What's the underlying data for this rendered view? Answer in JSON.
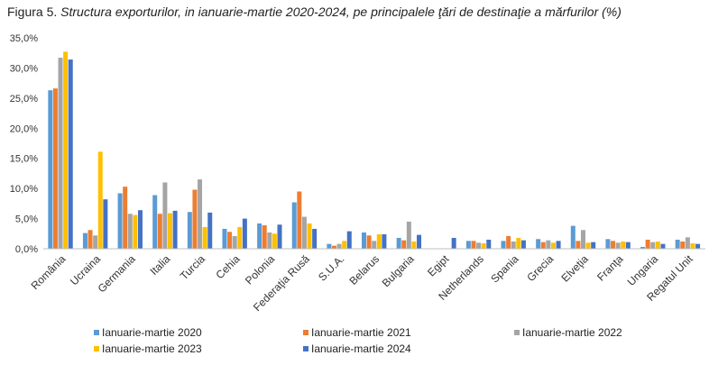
{
  "figure": {
    "prefix": "Figura 5.",
    "title": "Structura exporturilor, in ianuarie-martie 2020-2024, pe principalele ţări de destinaţie a mărfurilor (%)"
  },
  "chart_data": {
    "type": "bar",
    "title": "Figura 5. Structura exporturilor, in ianuarie-martie 2020-2024, pe principalele ţări de destinaţie a mărfurilor (%)",
    "xlabel": "",
    "ylabel": "",
    "ylim": [
      0,
      35
    ],
    "yticks": [
      "0,0%",
      "5,0%",
      "10,0%",
      "15,0%",
      "20,0%",
      "25,0%",
      "30,0%",
      "35,0%"
    ],
    "grid": false,
    "legend_position": "bottom",
    "categories": [
      "România",
      "Ucraina",
      "Germania",
      "Italia",
      "Turcia",
      "Cehia",
      "Polonia",
      "Federaţia Rusă",
      "S.U.A.",
      "Belarus",
      "Bulgaria",
      "Egipt",
      "Netherlands",
      "Spania",
      "Grecia",
      "Elveţia",
      "Franţa",
      "Ungaria",
      "Regatul Unit"
    ],
    "series": [
      {
        "name": "Ianuarie-martie 2020",
        "color": "#5B9BD5",
        "values": [
          26.3,
          2.6,
          9.2,
          8.9,
          6.1,
          3.3,
          4.2,
          7.7,
          0.8,
          2.7,
          1.8,
          0,
          1.3,
          1.3,
          1.6,
          3.8,
          1.6,
          0.3,
          1.5
        ]
      },
      {
        "name": "Ianuarie-martie 2021",
        "color": "#ED7D31",
        "values": [
          26.6,
          3.1,
          10.3,
          5.8,
          9.8,
          2.8,
          3.9,
          9.5,
          0.5,
          2.2,
          1.4,
          0,
          1.3,
          2.1,
          1.1,
          1.3,
          1.3,
          1.5,
          1.2
        ]
      },
      {
        "name": "Ianuarie-martie 2022",
        "color": "#A5A5A5",
        "values": [
          31.7,
          2.2,
          5.8,
          11.0,
          11.5,
          2.1,
          2.7,
          5.3,
          0.8,
          1.3,
          4.5,
          0,
          1.0,
          1.2,
          1.4,
          3.1,
          1.0,
          1.1,
          1.9
        ]
      },
      {
        "name": "Ianuarie-martie 2023",
        "color": "#FFC000",
        "values": [
          32.7,
          16.1,
          5.6,
          5.9,
          3.6,
          3.6,
          2.5,
          4.2,
          1.3,
          2.4,
          1.2,
          0,
          0.9,
          1.8,
          1.0,
          1.0,
          1.2,
          1.2,
          0.9
        ]
      },
      {
        "name": "Ianuarie-martie 2024",
        "color": "#4472C4",
        "values": [
          31.4,
          8.2,
          6.4,
          6.3,
          6.0,
          5.0,
          4.0,
          3.3,
          2.9,
          2.4,
          2.3,
          1.8,
          1.5,
          1.4,
          1.3,
          1.1,
          1.1,
          0.8,
          0.8
        ]
      }
    ]
  }
}
